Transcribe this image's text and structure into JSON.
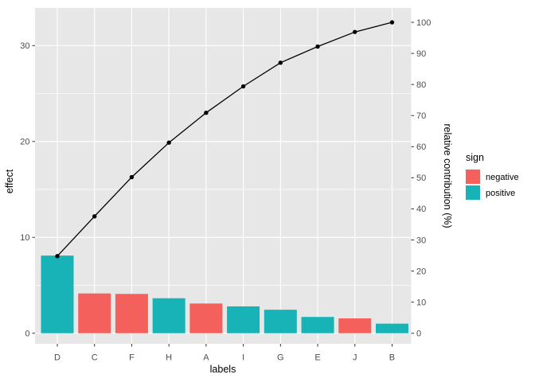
{
  "chart_data": {
    "type": "bar",
    "subtype": "pareto-with-cumulative-line",
    "categories": [
      "D",
      "C",
      "F",
      "H",
      "A",
      "I",
      "G",
      "E",
      "J",
      "B"
    ],
    "bar_series": {
      "name": "effect",
      "values": [
        8.1,
        4.15,
        4.1,
        3.65,
        3.1,
        2.8,
        2.45,
        1.7,
        1.55,
        1.0
      ],
      "signs": [
        "positive",
        "negative",
        "negative",
        "positive",
        "negative",
        "positive",
        "positive",
        "positive",
        "negative",
        "positive"
      ]
    },
    "line_series": {
      "name": "cumulative relative contribution",
      "cumulative_pct": [
        24.8,
        37.6,
        50.2,
        61.3,
        70.9,
        79.4,
        87.0,
        92.2,
        96.9,
        100
      ]
    },
    "x_axis": {
      "title": "labels"
    },
    "y_axis_left": {
      "title": "effect",
      "ticks": [
        0,
        10,
        20,
        30
      ],
      "minor_ticks": [
        5,
        15,
        25
      ],
      "range_approx": [
        -1,
        34
      ]
    },
    "y_axis_right": {
      "title": "relative contribution (%)",
      "ticks": [
        0,
        10,
        20,
        30,
        40,
        50,
        60,
        70,
        80,
        90,
        100
      ]
    },
    "legend": {
      "title": "sign",
      "entries": [
        {
          "label": "negative",
          "color": "#F4615D"
        },
        {
          "label": "positive",
          "color": "#17B3B6"
        }
      ]
    },
    "colors": {
      "negative": "#F4615D",
      "positive": "#17B3B6",
      "line": "#000000",
      "panel_background": "#E7E7E7",
      "grid": "#FFFFFF",
      "tick_text": "#4D4D4D",
      "tick_mark": "#333333"
    },
    "layout_hints": {
      "grid": "on",
      "legend_position": "right"
    }
  }
}
